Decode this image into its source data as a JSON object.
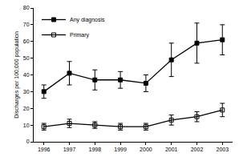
{
  "chart_data": {
    "type": "line",
    "y_label": "Discharges per 100,000 population",
    "categories": [
      "1996",
      "1997",
      "1998",
      "1999",
      "2000",
      "2001",
      "2002",
      "2003"
    ],
    "series": [
      {
        "name": "Any diagnosis",
        "color": "#000000",
        "marker": "square",
        "line_style": "solid",
        "values": [
          30,
          41,
          37,
          37,
          35,
          49,
          59,
          61
        ],
        "errors": [
          4,
          7,
          6,
          5,
          5,
          10,
          12,
          9
        ]
      },
      {
        "name": "Primary",
        "color": "#000000",
        "marker": "square-open",
        "line_style": "solid",
        "values": [
          9,
          11,
          10,
          9,
          9,
          13,
          15,
          19
        ],
        "errors": [
          2,
          2.5,
          2,
          2,
          2,
          3,
          3,
          4
        ]
      }
    ],
    "ylim": [
      0,
      80
    ],
    "yticks": [
      0,
      10,
      20,
      30,
      40,
      50,
      60,
      70,
      80
    ],
    "grid": false,
    "legend": "upper left"
  }
}
